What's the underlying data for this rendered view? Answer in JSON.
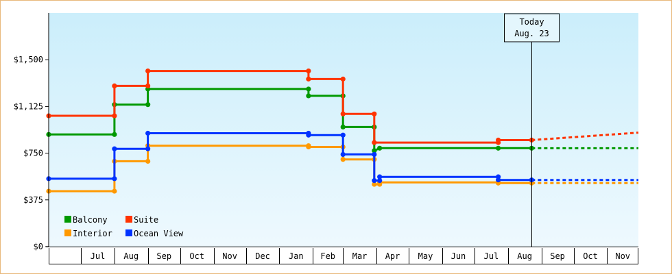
{
  "chart_data": {
    "type": "line",
    "title": "",
    "xlabel": "",
    "ylabel": "",
    "step": true,
    "ylim": [
      0,
      1875
    ],
    "xlim": [
      "2014-06-01",
      "2015-11-30"
    ],
    "y_ticks": [
      0,
      375,
      750,
      1125,
      1500
    ],
    "y_tick_labels": [
      "$0",
      "$375",
      "$750",
      "$1,125",
      "$1,500"
    ],
    "x_tick_labels": [
      "Jul",
      "Aug",
      "Sep",
      "Oct",
      "Nov",
      "Dec",
      "Jan",
      "Feb",
      "Mar",
      "Apr",
      "May",
      "Jun",
      "Jul",
      "Aug",
      "Sep",
      "Oct",
      "Nov"
    ],
    "x_tick_starts": [
      "2014-07-01",
      "2014-08-01",
      "2014-09-01",
      "2014-10-01",
      "2014-11-01",
      "2014-12-01",
      "2015-01-01",
      "2015-02-01",
      "2015-03-01",
      "2015-04-01",
      "2015-05-01",
      "2015-06-01",
      "2015-07-01",
      "2015-08-01",
      "2015-09-01",
      "2015-10-01",
      "2015-11-01"
    ],
    "today": {
      "label_line1": "Today",
      "label_line2": "Aug. 23",
      "date": "2015-08-23"
    },
    "legend": {
      "position": "bottom-left",
      "columns": 2
    },
    "background_gradient": [
      "#cbeefb",
      "#eef9fe"
    ],
    "series": [
      {
        "name": "Balcony",
        "color": "#009900",
        "points": [
          {
            "x": "2014-06-01",
            "y": 900
          },
          {
            "x": "2014-08-01",
            "y": 900
          },
          {
            "x": "2014-08-01",
            "y": 1140
          },
          {
            "x": "2014-09-01",
            "y": 1140
          },
          {
            "x": "2014-09-01",
            "y": 1265
          },
          {
            "x": "2015-01-28",
            "y": 1265
          },
          {
            "x": "2015-01-28",
            "y": 1210
          },
          {
            "x": "2015-03-01",
            "y": 1210
          },
          {
            "x": "2015-03-01",
            "y": 960
          },
          {
            "x": "2015-03-30",
            "y": 960
          },
          {
            "x": "2015-03-30",
            "y": 770
          },
          {
            "x": "2015-04-04",
            "y": 790
          },
          {
            "x": "2015-07-23",
            "y": 790
          },
          {
            "x": "2015-08-23",
            "y": 790
          }
        ],
        "projection": {
          "from": {
            "x": "2015-08-23",
            "y": 790
          },
          "to": {
            "x": "2015-11-30",
            "y": 790
          }
        }
      },
      {
        "name": "Suite",
        "color": "#ff3300",
        "points": [
          {
            "x": "2014-06-01",
            "y": 1050
          },
          {
            "x": "2014-08-01",
            "y": 1050
          },
          {
            "x": "2014-08-01",
            "y": 1290
          },
          {
            "x": "2014-09-01",
            "y": 1290
          },
          {
            "x": "2014-09-01",
            "y": 1410
          },
          {
            "x": "2015-01-28",
            "y": 1410
          },
          {
            "x": "2015-01-28",
            "y": 1345
          },
          {
            "x": "2015-03-01",
            "y": 1345
          },
          {
            "x": "2015-03-01",
            "y": 1065
          },
          {
            "x": "2015-03-30",
            "y": 1065
          },
          {
            "x": "2015-03-30",
            "y": 835
          },
          {
            "x": "2015-07-23",
            "y": 835
          },
          {
            "x": "2015-07-23",
            "y": 855
          },
          {
            "x": "2015-08-23",
            "y": 855
          }
        ],
        "projection": {
          "from": {
            "x": "2015-08-23",
            "y": 855
          },
          "to": {
            "x": "2015-11-30",
            "y": 915
          }
        }
      },
      {
        "name": "Interior",
        "color": "#ff9900",
        "points": [
          {
            "x": "2014-06-01",
            "y": 445
          },
          {
            "x": "2014-08-01",
            "y": 445
          },
          {
            "x": "2014-08-01",
            "y": 685
          },
          {
            "x": "2014-09-01",
            "y": 685
          },
          {
            "x": "2014-09-01",
            "y": 810
          },
          {
            "x": "2015-01-28",
            "y": 810
          },
          {
            "x": "2015-01-28",
            "y": 800
          },
          {
            "x": "2015-03-01",
            "y": 800
          },
          {
            "x": "2015-03-01",
            "y": 700
          },
          {
            "x": "2015-03-30",
            "y": 700
          },
          {
            "x": "2015-03-30",
            "y": 500
          },
          {
            "x": "2015-04-04",
            "y": 500
          },
          {
            "x": "2015-04-04",
            "y": 515
          },
          {
            "x": "2015-07-23",
            "y": 515
          },
          {
            "x": "2015-07-23",
            "y": 510
          },
          {
            "x": "2015-08-23",
            "y": 510
          }
        ],
        "projection": {
          "from": {
            "x": "2015-08-23",
            "y": 510
          },
          "to": {
            "x": "2015-11-30",
            "y": 510
          }
        }
      },
      {
        "name": "Ocean View",
        "color": "#0033ff",
        "points": [
          {
            "x": "2014-06-01",
            "y": 545
          },
          {
            "x": "2014-08-01",
            "y": 545
          },
          {
            "x": "2014-08-01",
            "y": 785
          },
          {
            "x": "2014-09-01",
            "y": 785
          },
          {
            "x": "2014-09-01",
            "y": 910
          },
          {
            "x": "2015-01-28",
            "y": 910
          },
          {
            "x": "2015-01-28",
            "y": 895
          },
          {
            "x": "2015-03-01",
            "y": 895
          },
          {
            "x": "2015-03-01",
            "y": 740
          },
          {
            "x": "2015-03-30",
            "y": 740
          },
          {
            "x": "2015-03-30",
            "y": 530
          },
          {
            "x": "2015-04-04",
            "y": 530
          },
          {
            "x": "2015-04-04",
            "y": 560
          },
          {
            "x": "2015-07-23",
            "y": 560
          },
          {
            "x": "2015-07-23",
            "y": 535
          },
          {
            "x": "2015-08-23",
            "y": 535
          }
        ],
        "projection": {
          "from": {
            "x": "2015-08-23",
            "y": 535
          },
          "to": {
            "x": "2015-11-30",
            "y": 535
          }
        }
      }
    ]
  }
}
